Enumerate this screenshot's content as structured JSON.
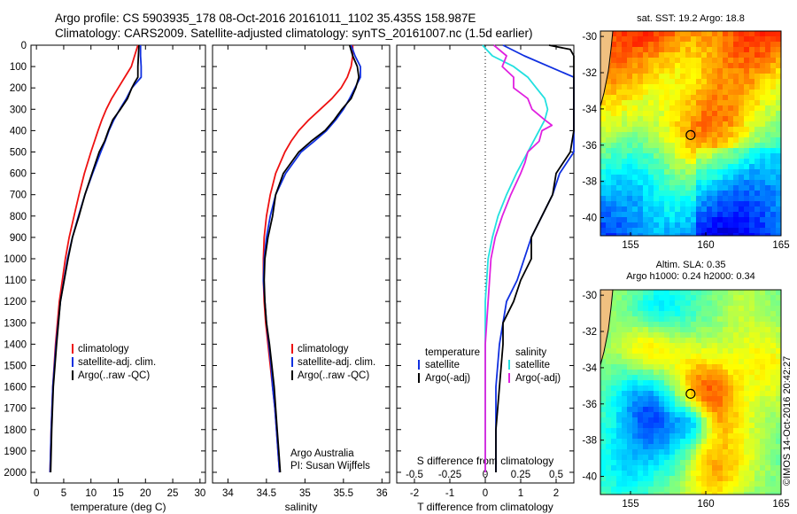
{
  "header": {
    "line1": "Argo profile: CS 5903935_178 08-Oct-2016 20161011_1102 35.435S 158.987E",
    "line2": "Climatology: CARS2009. Satellite-adjusted climatology: synTS_20161007.nc (1.5d earlier)"
  },
  "colors": {
    "climatology": "#ee1111",
    "satellite": "#1030e0",
    "argo": "#000000",
    "satellite_salinity": "#22e0e0",
    "argo_salinity": "#e020e0"
  },
  "chart_data": [
    {
      "type": "line",
      "id": "temperature",
      "xlabel": "temperature (deg C)",
      "xlim": [
        -1,
        31
      ],
      "xticks": [
        0,
        5,
        10,
        15,
        20,
        25,
        30
      ],
      "ylim": [
        2050,
        0
      ],
      "yticks": [
        0,
        100,
        200,
        300,
        400,
        500,
        600,
        700,
        800,
        900,
        1000,
        1100,
        1200,
        1300,
        1400,
        1500,
        1600,
        1700,
        1800,
        1900,
        2000
      ],
      "legend": [
        "climatology",
        "satellite-adj. clim.",
        "Argo(..raw -QC)"
      ],
      "series": [
        {
          "name": "climatology",
          "color_key": "climatology",
          "depth": [
            0,
            50,
            100,
            150,
            200,
            250,
            300,
            350,
            400,
            500,
            600,
            700,
            800,
            900,
            1000,
            1200,
            1400,
            1600,
            1800,
            2000
          ],
          "values": [
            18.6,
            18.0,
            17.4,
            16.2,
            15.0,
            13.8,
            12.8,
            12.0,
            11.3,
            10.0,
            8.8,
            7.8,
            6.9,
            6.0,
            5.3,
            4.2,
            3.5,
            3.0,
            2.7,
            2.5
          ]
        },
        {
          "name": "satellite-adj. clim.",
          "color_key": "satellite",
          "depth": [
            0,
            50,
            100,
            150,
            200,
            250,
            300,
            350,
            400,
            450,
            500,
            600,
            700,
            800,
            900,
            1000,
            1200,
            1400,
            1600,
            1800,
            2000
          ],
          "values": [
            19.1,
            19.1,
            19.2,
            19.2,
            17.5,
            16.5,
            15.3,
            14.2,
            13.3,
            12.6,
            11.8,
            10.3,
            8.9,
            7.7,
            6.6,
            5.7,
            4.4,
            3.6,
            3.0,
            2.7,
            2.5
          ]
        },
        {
          "name": "Argo(..raw -QC)",
          "color_key": "argo",
          "depth": [
            0,
            50,
            100,
            150,
            175,
            200,
            250,
            300,
            350,
            400,
            450,
            500,
            600,
            700,
            800,
            900,
            1000,
            1200,
            1400,
            1600,
            1800,
            2000
          ],
          "values": [
            18.8,
            18.7,
            18.6,
            18.6,
            18.0,
            17.5,
            16.7,
            15.4,
            14.0,
            13.2,
            12.5,
            11.5,
            10.2,
            8.9,
            7.8,
            6.6,
            5.8,
            4.4,
            3.7,
            3.1,
            2.8,
            2.6
          ]
        }
      ]
    },
    {
      "type": "line",
      "id": "salinity",
      "xlabel": "salinity",
      "xlim": [
        33.8,
        36.1
      ],
      "xticks": [
        34,
        34.5,
        35,
        35.5,
        36
      ],
      "ylim": [
        2050,
        0
      ],
      "legend": [
        "climatology",
        "satellite-adj. clim.",
        "Argo(..raw -QC)"
      ],
      "annotation": [
        "Argo Australia",
        "PI: Susan Wijffels"
      ],
      "series": [
        {
          "name": "climatology",
          "color_key": "climatology",
          "depth": [
            0,
            50,
            100,
            150,
            200,
            250,
            300,
            350,
            400,
            450,
            500,
            600,
            700,
            800,
            900,
            1000,
            1100,
            1200,
            1300,
            1400,
            1500,
            1600,
            1700,
            1800,
            1900,
            2000
          ],
          "values": [
            35.62,
            35.62,
            35.6,
            35.55,
            35.47,
            35.35,
            35.2,
            35.05,
            34.92,
            34.82,
            34.74,
            34.62,
            34.55,
            34.5,
            34.47,
            34.46,
            34.46,
            34.47,
            34.49,
            34.52,
            34.55,
            34.58,
            34.61,
            34.63,
            34.65,
            34.67
          ]
        },
        {
          "name": "satellite-adj. clim.",
          "color_key": "satellite",
          "depth": [
            0,
            50,
            100,
            150,
            200,
            250,
            300,
            350,
            400,
            450,
            500,
            600,
            700,
            800,
            900,
            1000,
            1100,
            1200,
            1300,
            1400,
            1500,
            1600,
            1700,
            1800,
            1900,
            2000
          ],
          "values": [
            35.6,
            35.65,
            35.72,
            35.72,
            35.65,
            35.58,
            35.5,
            35.4,
            35.28,
            35.12,
            34.95,
            34.75,
            34.62,
            34.55,
            34.5,
            34.47,
            34.46,
            34.48,
            34.5,
            34.53,
            34.56,
            34.58,
            34.61,
            34.63,
            34.65,
            34.67
          ]
        },
        {
          "name": "Argo(..raw -QC)",
          "color_key": "argo",
          "depth": [
            0,
            50,
            100,
            150,
            200,
            250,
            300,
            350,
            400,
            450,
            500,
            600,
            700,
            800,
            900,
            1000,
            1100,
            1200,
            1300,
            1400,
            1500,
            1600,
            1700,
            1800,
            1900,
            2000
          ],
          "values": [
            35.58,
            35.62,
            35.68,
            35.7,
            35.66,
            35.6,
            35.48,
            35.38,
            35.26,
            35.08,
            34.92,
            34.72,
            34.62,
            34.58,
            34.52,
            34.48,
            34.47,
            34.48,
            34.5,
            34.54,
            34.57,
            34.6,
            34.62,
            34.64,
            34.66,
            34.68
          ]
        }
      ]
    },
    {
      "type": "line",
      "id": "difference",
      "xlabel": "T difference from climatology",
      "xlabel_top": "S difference from climatology",
      "xlim": [
        -2.5,
        2.5
      ],
      "xticks": [
        -2,
        -1,
        0,
        1,
        2
      ],
      "xticks_s": [
        -0.5,
        -0.25,
        0,
        0.25,
        0.5
      ],
      "xticks_s_labels": [
        "-0.5",
        "-0.25",
        "0",
        "0.25",
        "0.5"
      ],
      "ylim": [
        2050,
        0
      ],
      "legend_t_title": "temperature",
      "legend_s_title": "salinity",
      "legend_t": [
        "satellite",
        "Argo(-adj)"
      ],
      "legend_s": [
        "satellite",
        "Argo(-adj)"
      ],
      "series": [
        {
          "name": "satellite",
          "group": "temperature",
          "color_key": "satellite",
          "depth": [
            0,
            50,
            100,
            150,
            200,
            250,
            300,
            400,
            500,
            600,
            700,
            800,
            900,
            1000,
            1100,
            1200,
            1300,
            1400,
            1600,
            1800,
            2000
          ],
          "values": [
            0.5,
            1.1,
            1.8,
            3.0,
            3.2,
            3.5,
            3.7,
            3.2,
            2.5,
            2.1,
            1.9,
            1.6,
            1.3,
            1.1,
            0.9,
            0.6,
            0.5,
            0.4,
            0.3,
            0.3,
            0.3
          ]
        },
        {
          "name": "Argo(-adj)",
          "group": "temperature",
          "color_key": "argo",
          "depth": [
            0,
            20,
            50,
            100,
            150,
            200,
            250,
            300,
            400,
            500,
            600,
            700,
            800,
            900,
            1000,
            1100,
            1200,
            1300,
            1400,
            1600,
            1800,
            2000
          ],
          "values": [
            1.8,
            2.4,
            2.8,
            3.6,
            3.8,
            3.6,
            3.7,
            3.8,
            3.4,
            2.4,
            2.0,
            1.9,
            1.6,
            1.3,
            1.3,
            1.0,
            0.8,
            0.5,
            0.5,
            0.4,
            0.3,
            0.3
          ]
        },
        {
          "name": "satellite",
          "group": "salinity",
          "color_key": "satellite_salinity",
          "depth": [
            0,
            50,
            100,
            150,
            200,
            250,
            300,
            350,
            400,
            450,
            500,
            600,
            700,
            800,
            900,
            1000,
            1200,
            1400,
            1600,
            1800,
            2000
          ],
          "values": [
            -0.02,
            0.05,
            0.2,
            0.3,
            0.36,
            0.42,
            0.44,
            0.42,
            0.38,
            0.34,
            0.3,
            0.22,
            0.15,
            0.09,
            0.05,
            0.02,
            0.0,
            0.0,
            0.0,
            0.0,
            0.0
          ]
        },
        {
          "name": "Argo(-adj)",
          "group": "salinity",
          "color_key": "argo_salinity",
          "depth": [
            0,
            50,
            100,
            150,
            200,
            250,
            300,
            350,
            375,
            400,
            450,
            500,
            550,
            600,
            700,
            800,
            900,
            1000,
            1200,
            1400,
            1600,
            1800,
            2000
          ],
          "values": [
            0.06,
            0.15,
            0.12,
            0.2,
            0.2,
            0.3,
            0.33,
            0.42,
            0.47,
            0.4,
            0.38,
            0.3,
            0.28,
            0.25,
            0.18,
            0.12,
            0.07,
            0.04,
            0.02,
            0.0,
            0.0,
            0.0,
            0.0
          ]
        }
      ]
    },
    {
      "type": "heatmap",
      "id": "sst-map",
      "title": "sat. SST: 19.2  Argo: 18.8",
      "xticks": [
        155,
        160,
        165
      ],
      "yticks": [
        -30,
        -32,
        -34,
        -36,
        -38,
        -40
      ],
      "xlim": [
        153,
        165
      ],
      "ylim": [
        -41,
        -29.7
      ],
      "marker": {
        "lon": 158.99,
        "lat": -35.44
      }
    },
    {
      "type": "heatmap",
      "id": "sla-map",
      "title_line1": "Altim. SLA: 0.35",
      "title_line2": "Argo h1000: 0.24 h2000: 0.34",
      "xticks": [
        155,
        160,
        165
      ],
      "yticks": [
        -30,
        -32,
        -34,
        -36,
        -38,
        -40
      ],
      "xlim": [
        153,
        165
      ],
      "ylim": [
        -41,
        -29.7
      ],
      "marker": {
        "lon": 158.99,
        "lat": -35.44
      }
    }
  ],
  "footer": {
    "credit": "©IMOS 14-Oct-2016 20:42:27"
  }
}
